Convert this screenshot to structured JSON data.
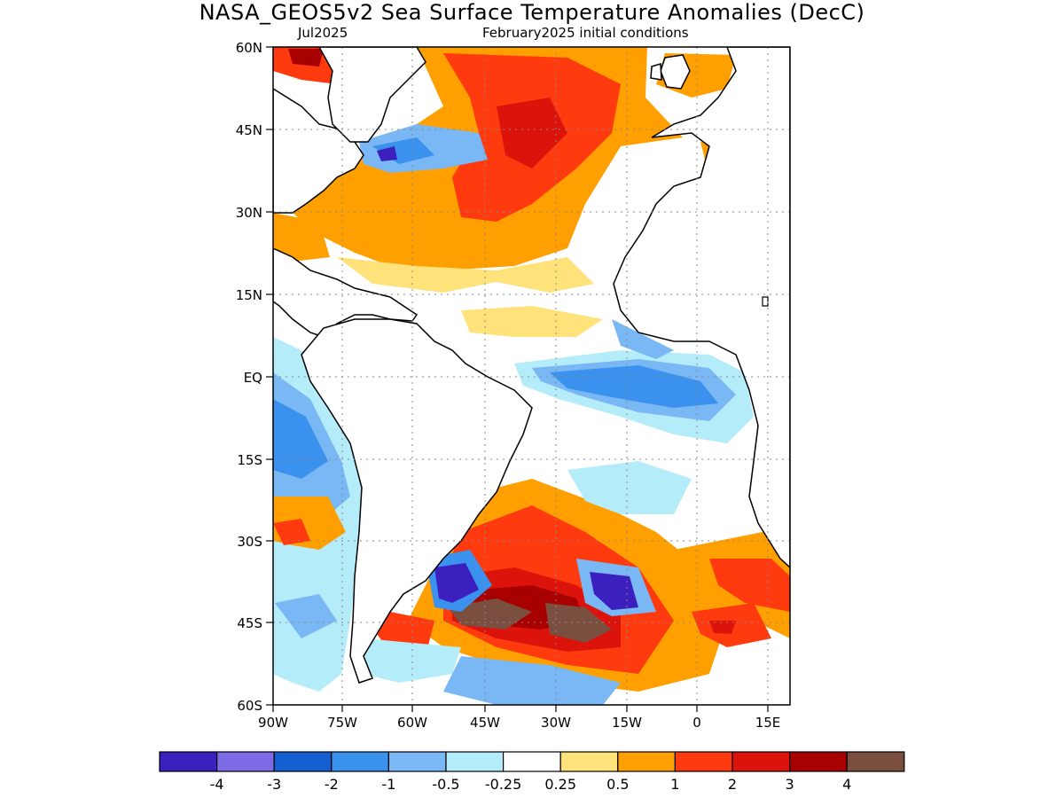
{
  "title": "NASA_GEOS5v2 Sea Surface Temperature Anomalies (DecC)",
  "subtitle_left": "Jul2025",
  "subtitle_right": "February2025 initial conditions",
  "lat_ticks": [
    "60N",
    "45N",
    "30N",
    "15N",
    "EQ",
    "15S",
    "30S",
    "45S",
    "60S"
  ],
  "lon_ticks": [
    "90W",
    "75W",
    "60W",
    "45W",
    "30W",
    "15W",
    "0",
    "15E"
  ],
  "legend": {
    "colors": [
      "#3b1fbf",
      "#7d6be6",
      "#145fcf",
      "#3a91ee",
      "#79b7f5",
      "#b4ecf9",
      "#ffffff",
      "#ffe27a",
      "#ffa000",
      "#ff3a0f",
      "#dc130a",
      "#a80000",
      "#7b4f40"
    ],
    "labels": [
      "-4",
      "-3",
      "-2",
      "-1",
      "-0.5",
      "-0.25",
      "0.25",
      "0.5",
      "1",
      "2",
      "3",
      "4"
    ]
  },
  "palette": {
    "warm_light": "#ffe27a",
    "warm": "#ffa000",
    "warmer": "#ff3a0f",
    "hot": "#dc130a",
    "hotter": "#a80000",
    "extreme": "#7b4f40",
    "cool_light": "#b4ecf9",
    "cool": "#79b7f5",
    "cooler": "#3a91ee",
    "cold": "#145fcf",
    "colder": "#7d6be6",
    "coldest": "#3b1fbf"
  }
}
